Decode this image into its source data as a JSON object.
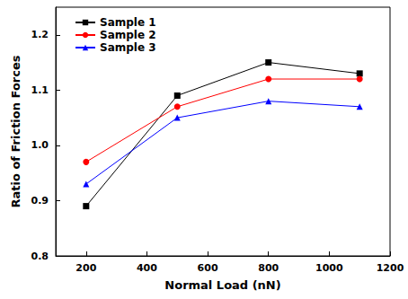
{
  "chart_data": {
    "type": "line",
    "x_label": "Normal Load (nN)",
    "y_label": "Ratio of Friction Forces",
    "x": [
      200,
      500,
      800,
      1100
    ],
    "series": [
      {
        "name": "Sample 1",
        "color": "#000000",
        "marker": "square",
        "values": [
          0.89,
          1.09,
          1.15,
          1.13
        ]
      },
      {
        "name": "Sample 2",
        "color": "#ff0000",
        "marker": "circle",
        "values": [
          0.97,
          1.07,
          1.12,
          1.12
        ]
      },
      {
        "name": "Sample 3",
        "color": "#0000ff",
        "marker": "triangle",
        "values": [
          0.93,
          1.05,
          1.08,
          1.07
        ]
      }
    ],
    "xlim": [
      100,
      1200
    ],
    "xticks": [
      200,
      400,
      600,
      800,
      1000,
      1200
    ],
    "ylim": [
      0.8,
      1.25
    ],
    "yticks": [
      {
        "value": 0.8,
        "label": "0.8"
      },
      {
        "value": 0.9,
        "label": "0.9"
      },
      {
        "value": 1,
        "label": "1.0"
      },
      {
        "value": 1.1,
        "label": "1.1"
      },
      {
        "value": 1.2,
        "label": "1.2"
      }
    ],
    "grid": false,
    "legend": "upper left"
  }
}
